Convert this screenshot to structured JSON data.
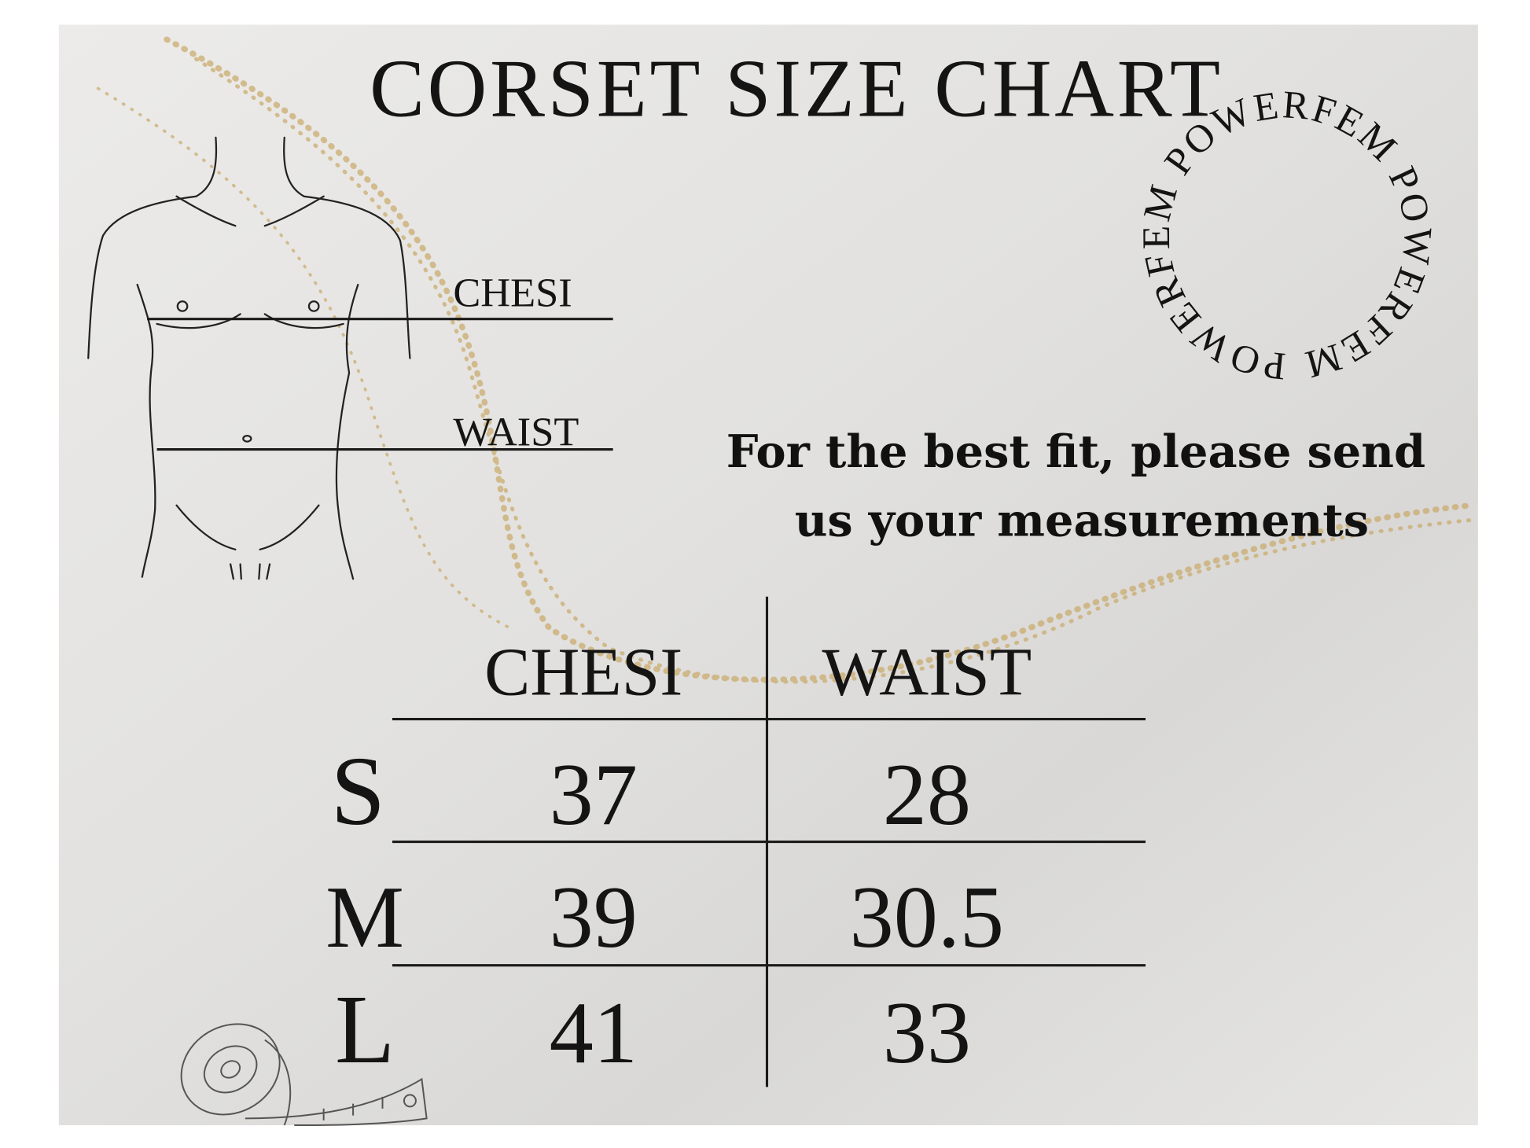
{
  "title": "CORSET SIZE CHART",
  "diagram": {
    "chest_label": "CHESI",
    "waist_label": "WAIST"
  },
  "badge": "POWERFEM POWERFEM POWERFEM",
  "note": {
    "lines": [
      "For the best fit, please send",
      "us your measurements"
    ]
  },
  "table": {
    "header": [
      "CHESI",
      "WAIST"
    ],
    "rows": [
      [
        "S",
        37,
        28
      ],
      [
        "M",
        39,
        30.5
      ],
      [
        "L",
        41,
        33
      ]
    ]
  }
}
